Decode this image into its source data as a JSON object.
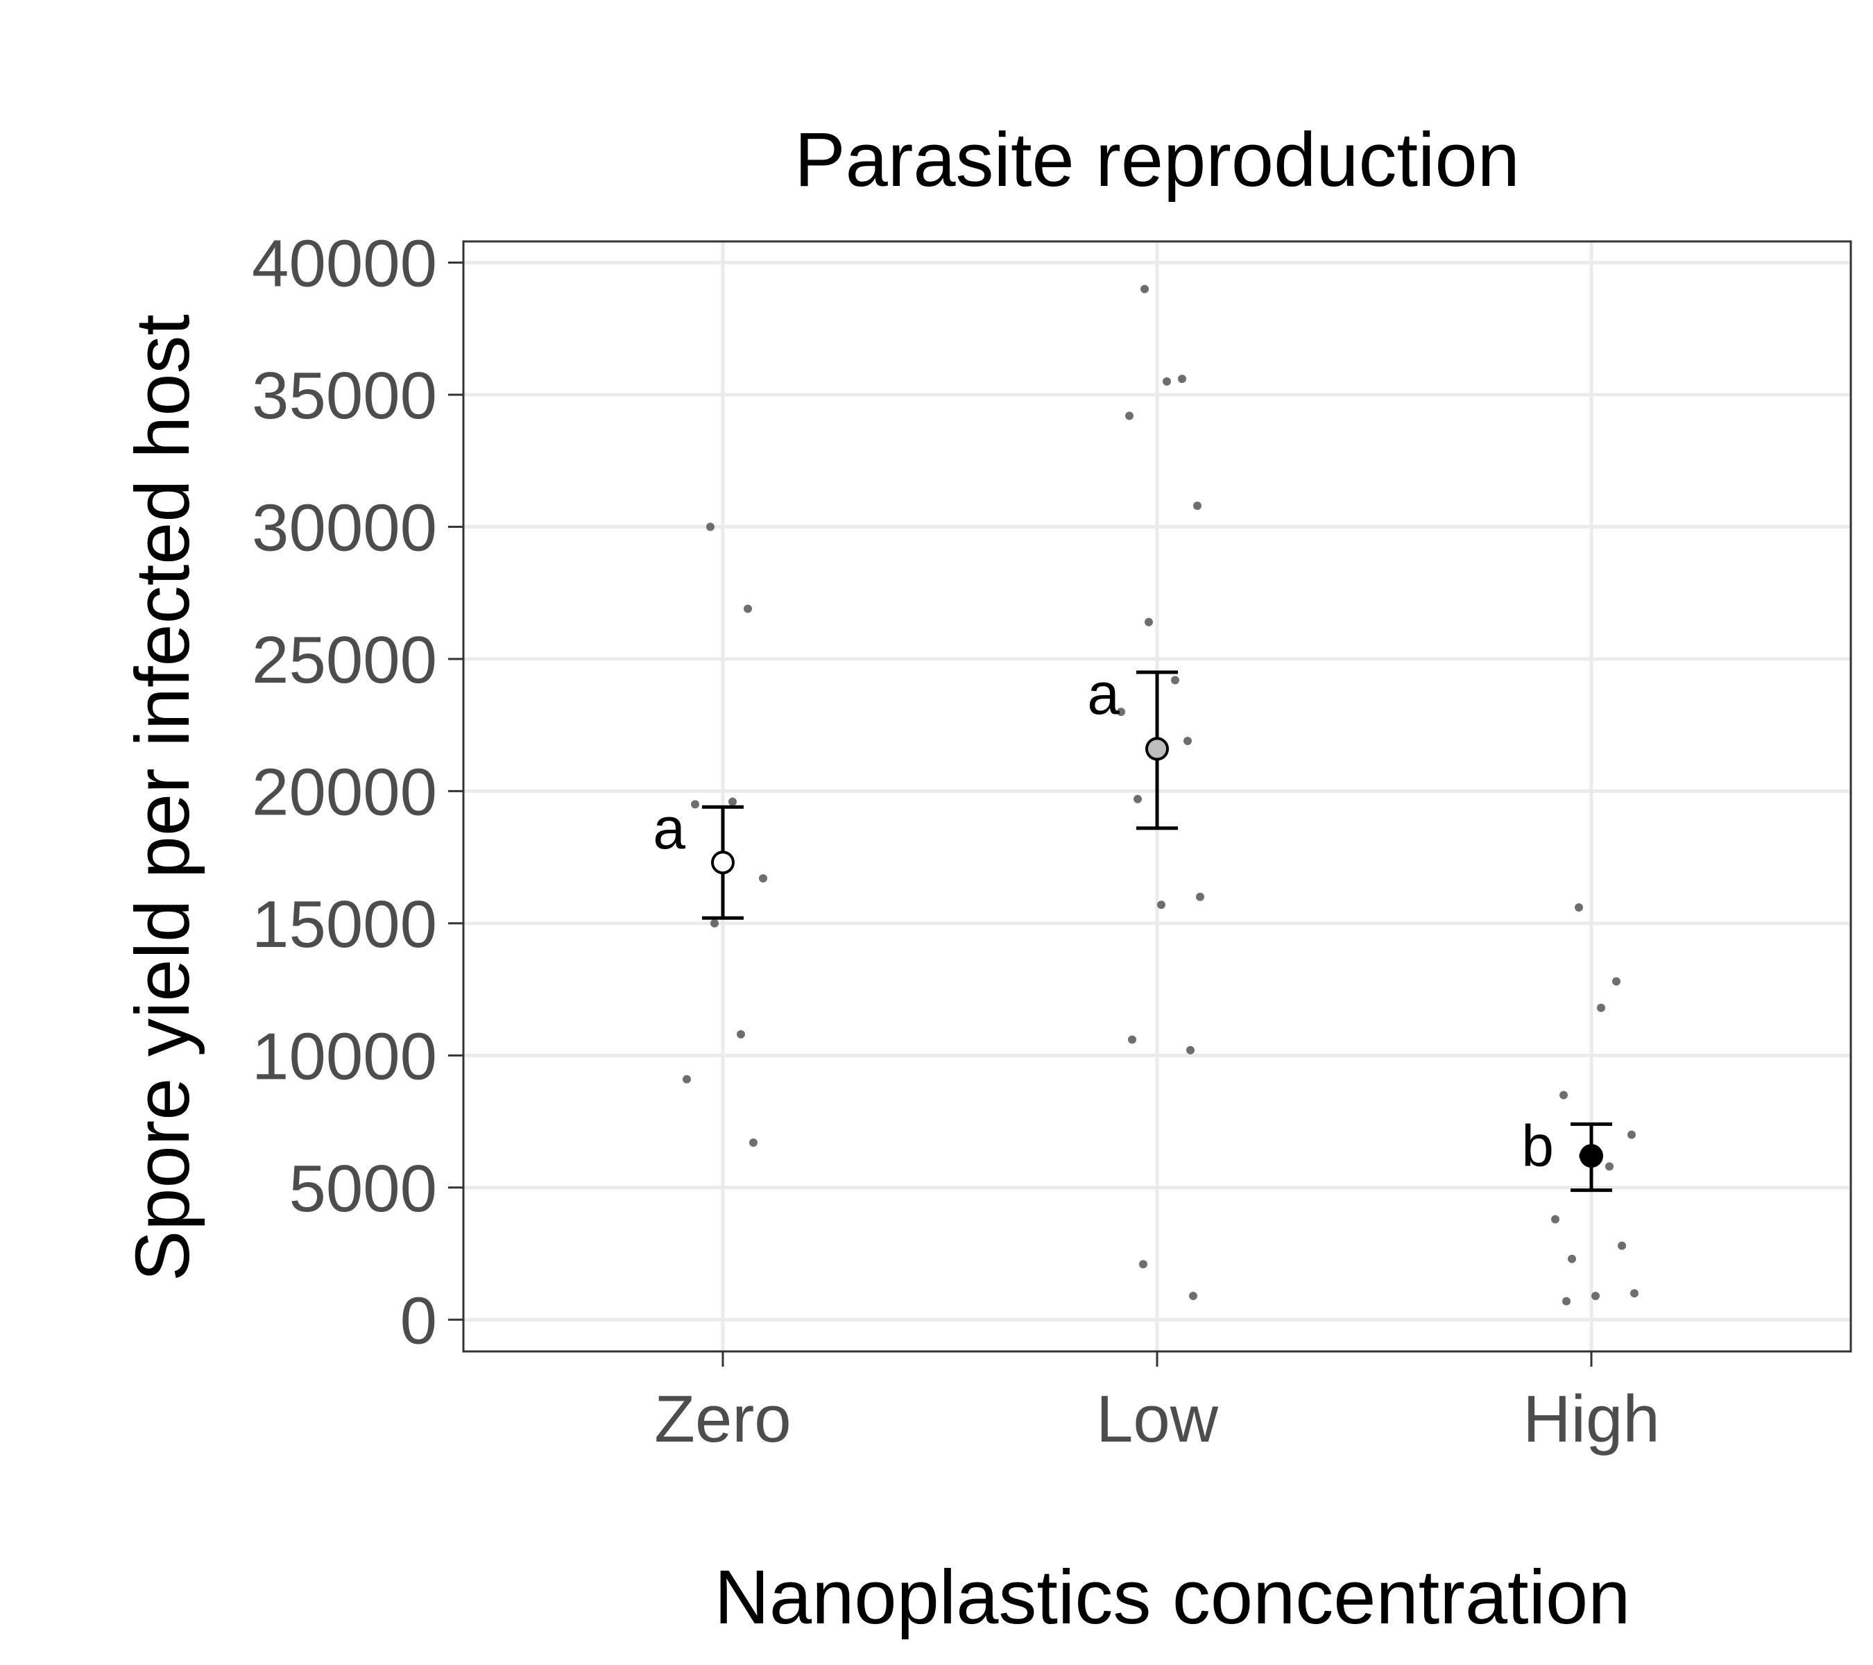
{
  "chart_data": {
    "type": "scatter",
    "title": "Parasite reproduction",
    "xlabel": "Nanoplastics concentration",
    "ylabel": "Spore yield per infected host",
    "categories": [
      "Zero",
      "Low",
      "High"
    ],
    "ylim": [
      -1200,
      40800
    ],
    "yticks": [
      0,
      5000,
      10000,
      15000,
      20000,
      25000,
      30000,
      35000,
      40000
    ],
    "ytick_labels": [
      "0",
      "5000",
      "10000",
      "15000",
      "20000",
      "25000",
      "30000",
      "35000",
      "40000"
    ],
    "grid": true,
    "points": {
      "Zero": [
        30000,
        26900,
        19600,
        19500,
        16700,
        15000,
        10800,
        9100,
        6700
      ],
      "Low": [
        39000,
        35600,
        35500,
        34200,
        30800,
        26400,
        24200,
        23000,
        21900,
        19700,
        16000,
        15700,
        10600,
        10200,
        2100,
        900
      ],
      "High": [
        15600,
        12800,
        11800,
        8500,
        7000,
        6200,
        5800,
        3800,
        2800,
        2300,
        1000,
        900,
        700
      ]
    },
    "summary": [
      {
        "category": "Zero",
        "mean": 17300,
        "lower": 15200,
        "upper": 19400,
        "letter": "a",
        "fill": "#ffffff"
      },
      {
        "category": "Low",
        "mean": 21600,
        "lower": 18600,
        "upper": 24500,
        "letter": "a",
        "fill": "#bdbdbd"
      },
      {
        "category": "High",
        "mean": 6200,
        "lower": 4900,
        "upper": 7400,
        "letter": "b",
        "fill": "#000000"
      }
    ],
    "colors": {
      "panel_border": "#333333",
      "grid": "#ebebeb",
      "points": "#555555",
      "error_bar": "#000000",
      "tick_text": "#4d4d4d"
    }
  }
}
